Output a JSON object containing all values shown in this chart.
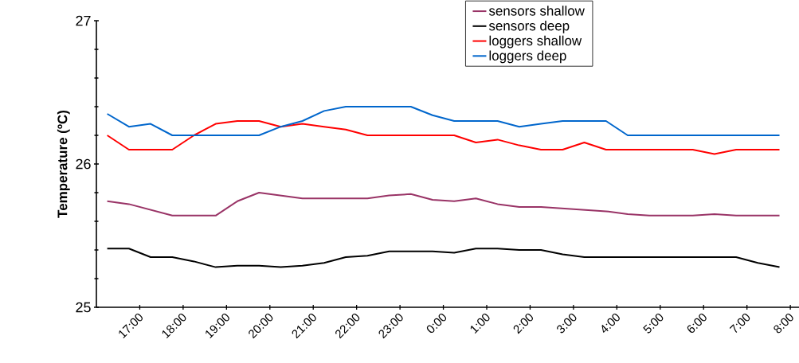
{
  "chart_data": {
    "type": "line",
    "ylabel": "Temperature (ºC)",
    "x": [
      "2000-01-01T16:15",
      "2000-01-01T16:45",
      "2000-01-01T17:15",
      "2000-01-01T17:45",
      "2000-01-01T18:15",
      "2000-01-01T18:45",
      "2000-01-01T19:15",
      "2000-01-01T19:45",
      "2000-01-01T20:15",
      "2000-01-01T20:45",
      "2000-01-01T21:15",
      "2000-01-01T21:45",
      "2000-01-01T22:15",
      "2000-01-01T22:45",
      "2000-01-01T23:15",
      "2000-01-01T23:45",
      "2000-01-02T00:15",
      "2000-01-02T00:45",
      "2000-01-02T01:15",
      "2000-01-02T01:45",
      "2000-01-02T02:15",
      "2000-01-02T02:45",
      "2000-01-02T03:15",
      "2000-01-02T03:45",
      "2000-01-02T04:15",
      "2000-01-02T04:45",
      "2000-01-02T05:15",
      "2000-01-02T05:45",
      "2000-01-02T06:15",
      "2000-01-02T06:45",
      "2000-01-02T07:15",
      "2000-01-02T07:45"
    ],
    "xlim": [
      "2000-01-01T16:00",
      "2000-01-02T08:12"
    ],
    "xticks": [
      {
        "value": "2000-01-01T17:00",
        "label": "17:00"
      },
      {
        "value": "2000-01-01T18:00",
        "label": "18:00"
      },
      {
        "value": "2000-01-01T19:00",
        "label": "19:00"
      },
      {
        "value": "2000-01-01T20:00",
        "label": "20:00"
      },
      {
        "value": "2000-01-01T21:00",
        "label": "21:00"
      },
      {
        "value": "2000-01-01T22:00",
        "label": "22:00"
      },
      {
        "value": "2000-01-01T23:00",
        "label": "23:00"
      },
      {
        "value": "2000-01-02T00:00",
        "label": "0:00"
      },
      {
        "value": "2000-01-02T01:00",
        "label": "1:00"
      },
      {
        "value": "2000-01-02T02:00",
        "label": "2:00"
      },
      {
        "value": "2000-01-02T03:00",
        "label": "3:00"
      },
      {
        "value": "2000-01-02T04:00",
        "label": "4:00"
      },
      {
        "value": "2000-01-02T05:00",
        "label": "5:00"
      },
      {
        "value": "2000-01-02T06:00",
        "label": "6:00"
      },
      {
        "value": "2000-01-02T07:00",
        "label": "7:00"
      },
      {
        "value": "2000-01-02T08:00",
        "label": "8:00"
      }
    ],
    "ylim": [
      25,
      27
    ],
    "yticks": [
      25,
      26,
      27
    ],
    "grid": false,
    "legend": "top right",
    "marker": "none",
    "line_style": "solid",
    "series": [
      {
        "name": "sensors shallow",
        "color": "#993366",
        "values": [
          25.74,
          25.72,
          25.68,
          25.64,
          25.64,
          25.64,
          25.74,
          25.8,
          25.78,
          25.76,
          25.76,
          25.76,
          25.76,
          25.78,
          25.79,
          25.75,
          25.74,
          25.76,
          25.72,
          25.7,
          25.7,
          25.69,
          25.68,
          25.67,
          25.65,
          25.64,
          25.64,
          25.64,
          25.65,
          25.64,
          25.64,
          25.64
        ]
      },
      {
        "name": "sensors deep",
        "color": "#000000",
        "values": [
          25.41,
          25.41,
          25.35,
          25.35,
          25.32,
          25.28,
          25.29,
          25.29,
          25.28,
          25.29,
          25.31,
          25.35,
          25.36,
          25.39,
          25.39,
          25.39,
          25.38,
          25.41,
          25.41,
          25.4,
          25.4,
          25.37,
          25.35,
          25.35,
          25.35,
          25.35,
          25.35,
          25.35,
          25.35,
          25.35,
          25.31,
          25.28
        ]
      },
      {
        "name": "loggers shallow",
        "color": "#ff0000",
        "values": [
          26.2,
          26.1,
          26.1,
          26.1,
          26.2,
          26.28,
          26.3,
          26.3,
          26.26,
          26.28,
          26.26,
          26.24,
          26.2,
          26.2,
          26.2,
          26.2,
          26.2,
          26.15,
          26.17,
          26.13,
          26.1,
          26.1,
          26.15,
          26.1,
          26.1,
          26.1,
          26.1,
          26.1,
          26.07,
          26.1,
          26.1,
          26.1
        ]
      },
      {
        "name": "loggers deep",
        "color": "#0066cc",
        "values": [
          26.35,
          26.26,
          26.28,
          26.2,
          26.2,
          26.2,
          26.2,
          26.2,
          26.26,
          26.3,
          26.37,
          26.4,
          26.4,
          26.4,
          26.4,
          26.34,
          26.3,
          26.3,
          26.3,
          26.26,
          26.28,
          26.3,
          26.3,
          26.3,
          26.2,
          26.2,
          26.2,
          26.2,
          26.2,
          26.2,
          26.2,
          26.2
        ]
      }
    ]
  }
}
